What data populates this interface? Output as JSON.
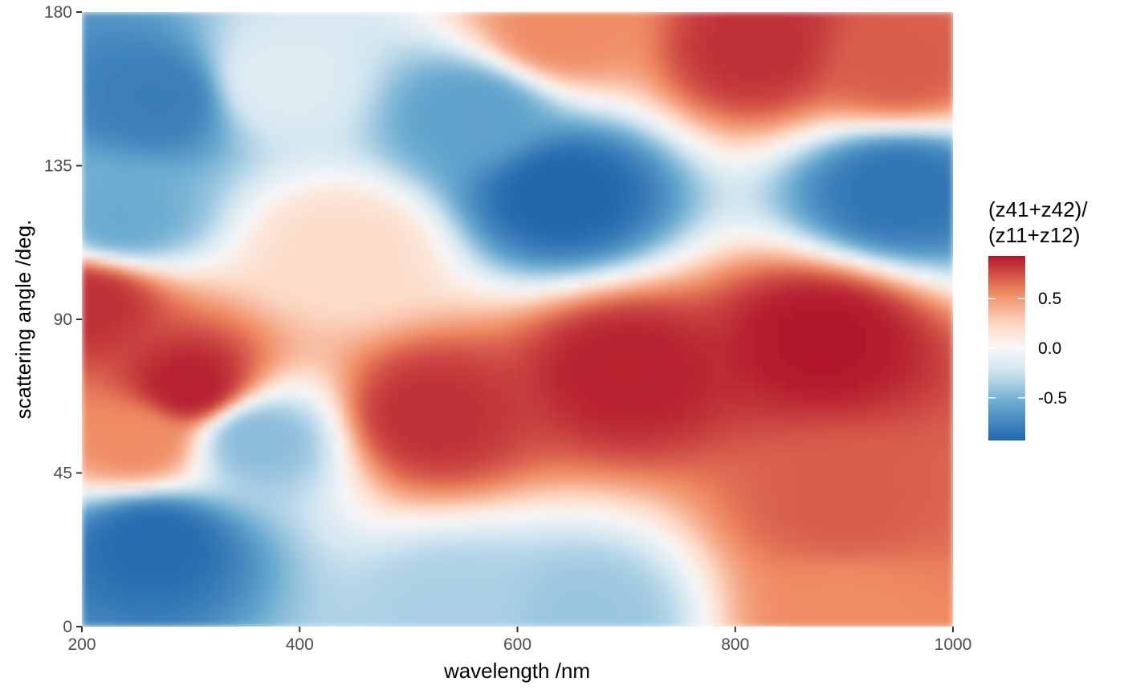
{
  "chart_data": {
    "type": "heatmap",
    "title": "",
    "xlabel": "wavelength /nm",
    "ylabel": "scattering angle /deg.",
    "xlim": [
      200,
      1000
    ],
    "ylim": [
      0,
      180
    ],
    "x_ticks": [
      200,
      400,
      600,
      800,
      1000
    ],
    "x_tick_labels": [
      "200",
      "400",
      "600",
      "800",
      "1000"
    ],
    "y_ticks": [
      0,
      45,
      90,
      135,
      180
    ],
    "y_tick_labels": [
      "0",
      "45",
      "90",
      "135",
      "180"
    ],
    "grid": false,
    "legend": {
      "title_lines": [
        "(z41+z42)/",
        "(z11+z12)"
      ],
      "position": "right",
      "colorscale": "RdBu (red = positive, blue = negative)",
      "range": [
        -0.93,
        0.93
      ],
      "ticks": [
        0.5,
        0.0,
        -0.5
      ],
      "tick_labels": [
        "0.5",
        "0.0",
        "-0.5"
      ]
    },
    "colors": {
      "strong_positive": "#b2182b",
      "positive": "#ef8a62",
      "light_positive": "#fddbc7",
      "zero": "#f7f7f7",
      "light_negative": "#d1e5f0",
      "negative": "#67a9cf",
      "strong_negative": "#2166ac"
    },
    "features": [
      {
        "wavelength": 880,
        "angle": 85,
        "value": 0.93
      },
      {
        "wavelength": 700,
        "angle": 75,
        "value": 0.9
      },
      {
        "wavelength": 520,
        "angle": 62,
        "value": 0.85
      },
      {
        "wavelength": 900,
        "angle": 35,
        "value": 0.7
      },
      {
        "wavelength": 900,
        "angle": 5,
        "value": 0.55
      },
      {
        "wavelength": 820,
        "angle": 170,
        "value": 0.85
      },
      {
        "wavelength": 950,
        "angle": 165,
        "value": 0.7
      },
      {
        "wavelength": 640,
        "angle": 175,
        "value": 0.55
      },
      {
        "wavelength": 300,
        "angle": 70,
        "value": 0.9
      },
      {
        "wavelength": 205,
        "angle": 95,
        "value": 0.85
      },
      {
        "wavelength": 250,
        "angle": 55,
        "value": 0.55
      },
      {
        "wavelength": 440,
        "angle": 110,
        "value": 0.22
      },
      {
        "wavelength": 640,
        "angle": 127,
        "value": -0.93
      },
      {
        "wavelength": 950,
        "angle": 128,
        "value": -0.85
      },
      {
        "wavelength": 560,
        "angle": 150,
        "value": -0.6
      },
      {
        "wavelength": 270,
        "angle": 155,
        "value": -0.8
      },
      {
        "wavelength": 235,
        "angle": 120,
        "value": -0.55
      },
      {
        "wavelength": 265,
        "angle": 25,
        "value": -0.9
      },
      {
        "wavelength": 360,
        "angle": 55,
        "value": -0.45
      },
      {
        "wavelength": 545,
        "angle": 5,
        "value": -0.35
      },
      {
        "wavelength": 660,
        "angle": 3,
        "value": -0.4
      },
      {
        "wavelength": 380,
        "angle": 160,
        "value": -0.15
      }
    ]
  }
}
